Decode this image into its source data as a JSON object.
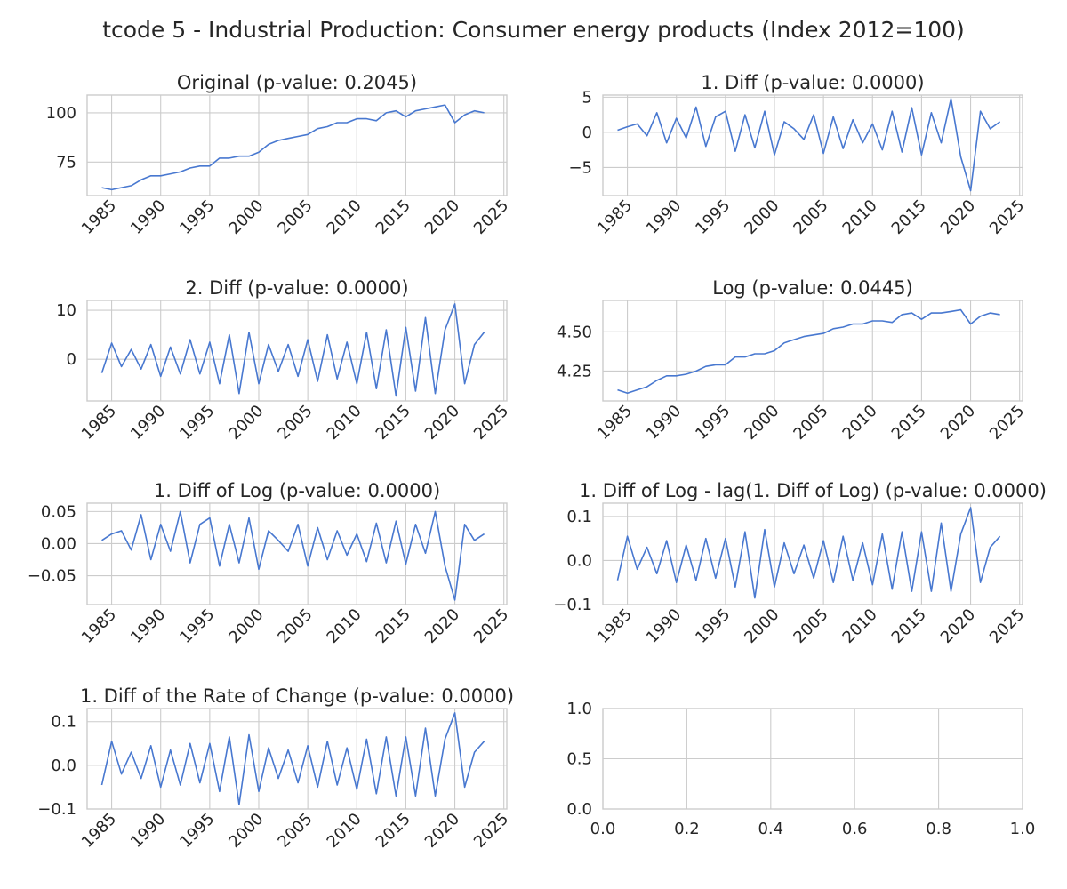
{
  "figure": {
    "title": "tcode 5 - Industrial Production: Consumer energy products (Index 2012=100)",
    "line_color": "#4878d0",
    "grid_color": "#cccccc"
  },
  "chart_data": [
    {
      "id": "original",
      "type": "line",
      "title": "Original (p-value: 0.2045)",
      "xlim": [
        1982.5,
        2025.3
      ],
      "ylim": [
        58,
        109
      ],
      "xticks": [
        1985,
        1990,
        1995,
        2000,
        2005,
        2010,
        2015,
        2020,
        2025
      ],
      "xticklabels": [
        "1985",
        "1990",
        "1995",
        "2000",
        "2005",
        "2010",
        "2015",
        "2020",
        "2025"
      ],
      "yticks": [
        75,
        100
      ],
      "yticklabels": [
        "75",
        "100"
      ],
      "series": [
        {
          "x": [
            1984.0,
            1985.0,
            1986.0,
            1987.0,
            1988.0,
            1989.0,
            1990.0,
            1991.0,
            1992.0,
            1993.0,
            1994.0,
            1995.0,
            1996.0,
            1997.0,
            1998.0,
            1999.0,
            2000.0,
            2001.0,
            2002.0,
            2003.0,
            2004.0,
            2005.0,
            2006.0,
            2007.0,
            2008.0,
            2009.0,
            2010.0,
            2011.0,
            2012.0,
            2013.0,
            2014.0,
            2015.0,
            2016.0,
            2017.0,
            2018.0,
            2019.0,
            2020.0,
            2021.0,
            2022.0,
            2023.0
          ],
          "y": [
            62,
            61,
            62,
            63,
            66,
            68,
            68,
            69,
            70,
            72,
            73,
            73,
            77,
            77,
            78,
            78,
            80,
            84,
            86,
            87,
            88,
            89,
            92,
            93,
            95,
            95,
            97,
            97,
            96,
            100,
            101,
            98,
            101,
            102,
            103,
            104,
            95,
            99,
            101,
            100
          ]
        }
      ]
    },
    {
      "id": "diff1",
      "type": "line",
      "title": "1. Diff (p-value: 0.0000)",
      "xlim": [
        1982.5,
        2025.3
      ],
      "ylim": [
        -9,
        5.3
      ],
      "xticks": [
        1985,
        1990,
        1995,
        2000,
        2005,
        2010,
        2015,
        2020,
        2025
      ],
      "xticklabels": [
        "1985",
        "1990",
        "1995",
        "2000",
        "2005",
        "2010",
        "2015",
        "2020",
        "2025"
      ],
      "yticks": [
        -5,
        0,
        5
      ],
      "yticklabels": [
        "−5",
        "0",
        "5"
      ],
      "series": [
        {
          "x": [
            1984.0,
            1985.0,
            1986.0,
            1987.0,
            1988.0,
            1989.0,
            1990.0,
            1991.0,
            1992.0,
            1993.0,
            1994.0,
            1995.0,
            1996.0,
            1997.0,
            1998.0,
            1999.0,
            2000.0,
            2001.0,
            2002.0,
            2003.0,
            2004.0,
            2005.0,
            2006.0,
            2007.0,
            2008.0,
            2009.0,
            2010.0,
            2011.0,
            2012.0,
            2013.0,
            2014.0,
            2015.0,
            2016.0,
            2017.0,
            2018.0,
            2019.0,
            2020.0,
            2021.0,
            2022.0,
            2023.0
          ],
          "y": [
            0.3,
            0.8,
            1.2,
            -0.5,
            2.8,
            -1.5,
            2.0,
            -0.8,
            3.6,
            -2.0,
            2.2,
            3.0,
            -2.7,
            2.5,
            -2.2,
            3.0,
            -3.2,
            1.5,
            0.5,
            -1.0,
            2.5,
            -3.0,
            2.2,
            -2.3,
            1.8,
            -1.5,
            1.2,
            -2.5,
            3.0,
            -2.8,
            3.5,
            -3.2,
            2.8,
            -1.5,
            4.8,
            -3.5,
            -8.3,
            3.0,
            0.5,
            1.5
          ]
        }
      ]
    },
    {
      "id": "diff2",
      "type": "line",
      "title": "2. Diff (p-value: 0.0000)",
      "xlim": [
        1982.5,
        2025.3
      ],
      "ylim": [
        -8.5,
        12
      ],
      "xticks": [
        1985,
        1990,
        1995,
        2000,
        2005,
        2010,
        2015,
        2020,
        2025
      ],
      "xticklabels": [
        "1985",
        "1990",
        "1995",
        "2000",
        "2005",
        "2010",
        "2015",
        "2020",
        "2025"
      ],
      "yticks": [
        0,
        10
      ],
      "yticklabels": [
        "0",
        "10"
      ],
      "series": [
        {
          "x": [
            1984.0,
            1985.0,
            1986.0,
            1987.0,
            1988.0,
            1989.0,
            1990.0,
            1991.0,
            1992.0,
            1993.0,
            1994.0,
            1995.0,
            1996.0,
            1997.0,
            1998.0,
            1999.0,
            2000.0,
            2001.0,
            2002.0,
            2003.0,
            2004.0,
            2005.0,
            2006.0,
            2007.0,
            2008.0,
            2009.0,
            2010.0,
            2011.0,
            2012.0,
            2013.0,
            2014.0,
            2015.0,
            2016.0,
            2017.0,
            2018.0,
            2019.0,
            2020.0,
            2021.0,
            2022.0,
            2023.0
          ],
          "y": [
            -2.8,
            3.3,
            -1.5,
            2.0,
            -2.0,
            3.0,
            -3.5,
            2.5,
            -3.0,
            4.0,
            -3.0,
            3.5,
            -5.0,
            5.0,
            -7.0,
            5.5,
            -5.0,
            3.0,
            -2.5,
            3.0,
            -3.5,
            4.0,
            -4.5,
            5.0,
            -4.0,
            3.5,
            -5.0,
            5.5,
            -6.0,
            6.0,
            -7.5,
            6.5,
            -6.5,
            8.5,
            -7.0,
            6.0,
            11.3,
            -5.0,
            3.0,
            5.5
          ]
        }
      ]
    },
    {
      "id": "log",
      "type": "line",
      "title": "Log (p-value: 0.0445)",
      "xlim": [
        1982.5,
        2025.3
      ],
      "ylim": [
        4.06,
        4.7
      ],
      "xticks": [
        1985,
        1990,
        1995,
        2000,
        2005,
        2010,
        2015,
        2020,
        2025
      ],
      "xticklabels": [
        "1985",
        "1990",
        "1995",
        "2000",
        "2005",
        "2010",
        "2015",
        "2020",
        "2025"
      ],
      "yticks": [
        4.25,
        4.5
      ],
      "yticklabels": [
        "4.25",
        "4.50"
      ],
      "series": [
        {
          "x": [
            1984.0,
            1985.0,
            1986.0,
            1987.0,
            1988.0,
            1989.0,
            1990.0,
            1991.0,
            1992.0,
            1993.0,
            1994.0,
            1995.0,
            1996.0,
            1997.0,
            1998.0,
            1999.0,
            2000.0,
            2001.0,
            2002.0,
            2003.0,
            2004.0,
            2005.0,
            2006.0,
            2007.0,
            2008.0,
            2009.0,
            2010.0,
            2011.0,
            2012.0,
            2013.0,
            2014.0,
            2015.0,
            2016.0,
            2017.0,
            2018.0,
            2019.0,
            2020.0,
            2021.0,
            2022.0,
            2023.0
          ],
          "y": [
            4.13,
            4.11,
            4.13,
            4.15,
            4.19,
            4.22,
            4.22,
            4.23,
            4.25,
            4.28,
            4.29,
            4.29,
            4.34,
            4.34,
            4.36,
            4.36,
            4.38,
            4.43,
            4.45,
            4.47,
            4.48,
            4.49,
            4.52,
            4.53,
            4.55,
            4.55,
            4.57,
            4.57,
            4.56,
            4.61,
            4.62,
            4.58,
            4.62,
            4.62,
            4.63,
            4.64,
            4.55,
            4.6,
            4.62,
            4.61
          ]
        }
      ]
    },
    {
      "id": "difflog",
      "type": "line",
      "title": "1. Diff of Log (p-value: 0.0000)",
      "xlim": [
        1982.5,
        2025.3
      ],
      "ylim": [
        -0.095,
        0.063
      ],
      "xticks": [
        1985,
        1990,
        1995,
        2000,
        2005,
        2010,
        2015,
        2020,
        2025
      ],
      "xticklabels": [
        "1985",
        "1990",
        "1995",
        "2000",
        "2005",
        "2010",
        "2015",
        "2020",
        "2025"
      ],
      "yticks": [
        -0.05,
        0.0,
        0.05
      ],
      "yticklabels": [
        "−0.05",
        "0.00",
        "0.05"
      ],
      "series": [
        {
          "x": [
            1984.0,
            1985.0,
            1986.0,
            1987.0,
            1988.0,
            1989.0,
            1990.0,
            1991.0,
            1992.0,
            1993.0,
            1994.0,
            1995.0,
            1996.0,
            1997.0,
            1998.0,
            1999.0,
            2000.0,
            2001.0,
            2002.0,
            2003.0,
            2004.0,
            2005.0,
            2006.0,
            2007.0,
            2008.0,
            2009.0,
            2010.0,
            2011.0,
            2012.0,
            2013.0,
            2014.0,
            2015.0,
            2016.0,
            2017.0,
            2018.0,
            2019.0,
            2020.0,
            2021.0,
            2022.0,
            2023.0
          ],
          "y": [
            0.005,
            0.015,
            0.02,
            -0.01,
            0.045,
            -0.025,
            0.03,
            -0.012,
            0.05,
            -0.03,
            0.03,
            0.04,
            -0.035,
            0.03,
            -0.03,
            0.04,
            -0.04,
            0.02,
            0.005,
            -0.012,
            0.03,
            -0.035,
            0.025,
            -0.025,
            0.02,
            -0.018,
            0.015,
            -0.028,
            0.032,
            -0.03,
            0.035,
            -0.032,
            0.03,
            -0.015,
            0.05,
            -0.035,
            -0.088,
            0.03,
            0.005,
            0.015
          ]
        }
      ]
    },
    {
      "id": "difflog_lag",
      "type": "line",
      "title": "1. Diff of Log - lag(1. Diff of Log) (p-value: 0.0000)",
      "xlim": [
        1982.5,
        2025.3
      ],
      "ylim": [
        -0.1,
        0.13
      ],
      "xticks": [
        1985,
        1990,
        1995,
        2000,
        2005,
        2010,
        2015,
        2020,
        2025
      ],
      "xticklabels": [
        "1985",
        "1990",
        "1995",
        "2000",
        "2005",
        "2010",
        "2015",
        "2020",
        "2025"
      ],
      "yticks": [
        -0.1,
        0.0,
        0.1
      ],
      "yticklabels": [
        "−0.1",
        "0.0",
        "0.1"
      ],
      "series": [
        {
          "x": [
            1984.0,
            1985.0,
            1986.0,
            1987.0,
            1988.0,
            1989.0,
            1990.0,
            1991.0,
            1992.0,
            1993.0,
            1994.0,
            1995.0,
            1996.0,
            1997.0,
            1998.0,
            1999.0,
            2000.0,
            2001.0,
            2002.0,
            2003.0,
            2004.0,
            2005.0,
            2006.0,
            2007.0,
            2008.0,
            2009.0,
            2010.0,
            2011.0,
            2012.0,
            2013.0,
            2014.0,
            2015.0,
            2016.0,
            2017.0,
            2018.0,
            2019.0,
            2020.0,
            2021.0,
            2022.0,
            2023.0
          ],
          "y": [
            -0.045,
            0.055,
            -0.02,
            0.03,
            -0.03,
            0.045,
            -0.05,
            0.035,
            -0.045,
            0.05,
            -0.04,
            0.05,
            -0.06,
            0.065,
            -0.085,
            0.07,
            -0.06,
            0.04,
            -0.03,
            0.035,
            -0.04,
            0.045,
            -0.05,
            0.055,
            -0.045,
            0.04,
            -0.055,
            0.06,
            -0.065,
            0.065,
            -0.07,
            0.065,
            -0.07,
            0.085,
            -0.07,
            0.06,
            0.12,
            -0.05,
            0.03,
            0.055
          ]
        }
      ]
    },
    {
      "id": "diff_roc",
      "type": "line",
      "title": "1. Diff of the Rate of Change (p-value: 0.0000)",
      "xlim": [
        1982.5,
        2025.3
      ],
      "ylim": [
        -0.1,
        0.13
      ],
      "xticks": [
        1985,
        1990,
        1995,
        2000,
        2005,
        2010,
        2015,
        2020,
        2025
      ],
      "xticklabels": [
        "1985",
        "1990",
        "1995",
        "2000",
        "2005",
        "2010",
        "2015",
        "2020",
        "2025"
      ],
      "yticks": [
        -0.1,
        0.0,
        0.1
      ],
      "yticklabels": [
        "−0.1",
        "0.0",
        "0.1"
      ],
      "series": [
        {
          "x": [
            1984.0,
            1985.0,
            1986.0,
            1987.0,
            1988.0,
            1989.0,
            1990.0,
            1991.0,
            1992.0,
            1993.0,
            1994.0,
            1995.0,
            1996.0,
            1997.0,
            1998.0,
            1999.0,
            2000.0,
            2001.0,
            2002.0,
            2003.0,
            2004.0,
            2005.0,
            2006.0,
            2007.0,
            2008.0,
            2009.0,
            2010.0,
            2011.0,
            2012.0,
            2013.0,
            2014.0,
            2015.0,
            2016.0,
            2017.0,
            2018.0,
            2019.0,
            2020.0,
            2021.0,
            2022.0,
            2023.0
          ],
          "y": [
            -0.045,
            0.055,
            -0.02,
            0.03,
            -0.03,
            0.045,
            -0.05,
            0.035,
            -0.045,
            0.05,
            -0.04,
            0.05,
            -0.06,
            0.065,
            -0.09,
            0.07,
            -0.06,
            0.04,
            -0.03,
            0.035,
            -0.04,
            0.045,
            -0.05,
            0.055,
            -0.045,
            0.04,
            -0.055,
            0.06,
            -0.065,
            0.065,
            -0.07,
            0.065,
            -0.07,
            0.085,
            -0.07,
            0.06,
            0.12,
            -0.05,
            0.03,
            0.055
          ]
        }
      ]
    },
    {
      "id": "empty",
      "type": "line",
      "title": "",
      "xlim": [
        0,
        1
      ],
      "ylim": [
        0,
        1
      ],
      "xticks": [
        0.0,
        0.2,
        0.4,
        0.6,
        0.8,
        1.0
      ],
      "xticklabels": [
        "0.0",
        "0.2",
        "0.4",
        "0.6",
        "0.8",
        "1.0"
      ],
      "yticks": [
        0.0,
        0.5,
        1.0
      ],
      "yticklabels": [
        "0.0",
        "0.5",
        "1.0"
      ],
      "series": []
    }
  ]
}
